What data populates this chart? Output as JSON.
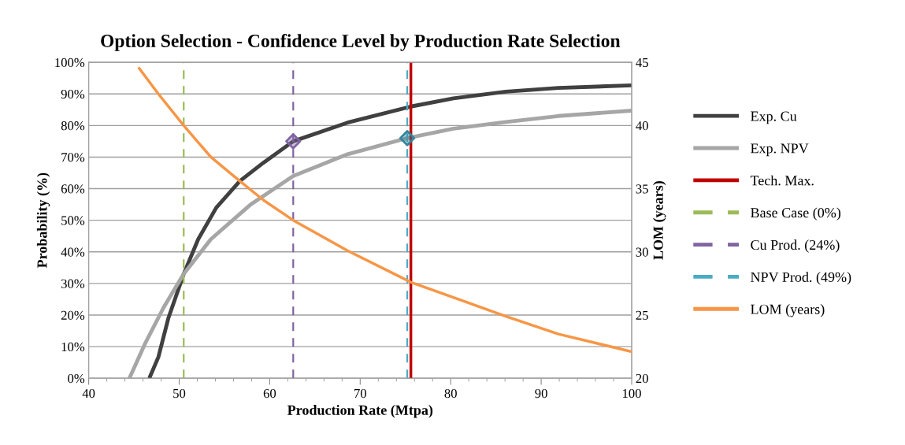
{
  "chart_data": {
    "type": "line",
    "title": "Option Selection - Confidence Level by Production Rate Selection",
    "xlabel": "Production Rate (Mtpa)",
    "ylabel": "Probability (%)",
    "y2label": "LOM (years)",
    "series": [
      {
        "name": "Exp. Cu",
        "color": "#404040",
        "x": [
          46.7,
          47.7,
          48.8,
          50.5,
          52.1,
          54.1,
          56.7,
          59.3,
          62.6,
          68.6,
          75.6,
          80.3,
          86.1,
          91.9,
          100
        ],
        "values": [
          0,
          6.7,
          19,
          33,
          44,
          54,
          62.4,
          68.2,
          75,
          80.9,
          86,
          88.6,
          90.7,
          91.9,
          92.7
        ]
      },
      {
        "name": "Exp. NPV",
        "color": "#a6a6a6",
        "x": [
          44.5,
          46.2,
          48.3,
          50.5,
          53.5,
          57.9,
          62.6,
          68.6,
          75.2,
          80.3,
          86.1,
          91.9,
          100
        ],
        "values": [
          0,
          10.8,
          22.5,
          33,
          44,
          55,
          64,
          70.9,
          76,
          79,
          81.1,
          83,
          84.7
        ]
      },
      {
        "name": "Tech. Max.",
        "color": "#c00000",
        "line_style": "solid",
        "x": [
          75.6,
          75.6
        ],
        "values": [
          0,
          100
        ]
      },
      {
        "name": "Base Case (0%)",
        "color": "#9bbb59",
        "line_style": "dashed",
        "x": [
          50.5,
          50.5
        ],
        "values": [
          0,
          100
        ]
      },
      {
        "name": "Cu Prod. (24%)",
        "color": "#8064a2",
        "line_style": "dashed",
        "x": [
          62.6,
          62.6
        ],
        "values": [
          0,
          100
        ]
      },
      {
        "name": "NPV Prod. (49%)",
        "color": "#4bacc6",
        "line_style": "dashed",
        "x": [
          75.2,
          75.2
        ],
        "values": [
          0,
          100
        ]
      },
      {
        "name": "LOM (years)",
        "color": "#f79646",
        "axis": "y2",
        "x": [
          45.5,
          47.7,
          50.5,
          53.5,
          56.7,
          59.3,
          62.6,
          68.6,
          75.6,
          80.3,
          86.1,
          91.9,
          100
        ],
        "values": [
          44.6,
          42.5,
          40,
          37.5,
          35.6,
          34.1,
          32.5,
          30.1,
          27.6,
          26.4,
          24.9,
          23.5,
          22.1
        ]
      },
      {
        "type": "scatter",
        "marker": "diamond",
        "color": "#8064a2",
        "x": [
          62.6
        ],
        "values": [
          75
        ]
      },
      {
        "type": "scatter",
        "marker": "diamond",
        "color": "#31859c",
        "x": [
          75.2
        ],
        "values": [
          76
        ]
      }
    ],
    "xlim": [
      40,
      100
    ],
    "xticks": [
      40,
      50,
      60,
      70,
      80,
      90,
      100
    ],
    "ylim": [
      0,
      100
    ],
    "yticks": [
      {
        "value": 0,
        "label": "0%"
      },
      {
        "value": 10,
        "label": "10%"
      },
      {
        "value": 20,
        "label": "20%"
      },
      {
        "value": 30,
        "label": "30%"
      },
      {
        "value": 40,
        "label": "40%"
      },
      {
        "value": 50,
        "label": "50%"
      },
      {
        "value": 60,
        "label": "60%"
      },
      {
        "value": 70,
        "label": "70%"
      },
      {
        "value": 80,
        "label": "80%"
      },
      {
        "value": 90,
        "label": "90%"
      },
      {
        "value": 100,
        "label": "100%"
      }
    ],
    "y2lim": [
      20,
      45
    ],
    "y2ticks": [
      20,
      25,
      30,
      35,
      40,
      45
    ],
    "grid": "y",
    "legend": "right",
    "marker": "none",
    "line_style": "solid"
  }
}
